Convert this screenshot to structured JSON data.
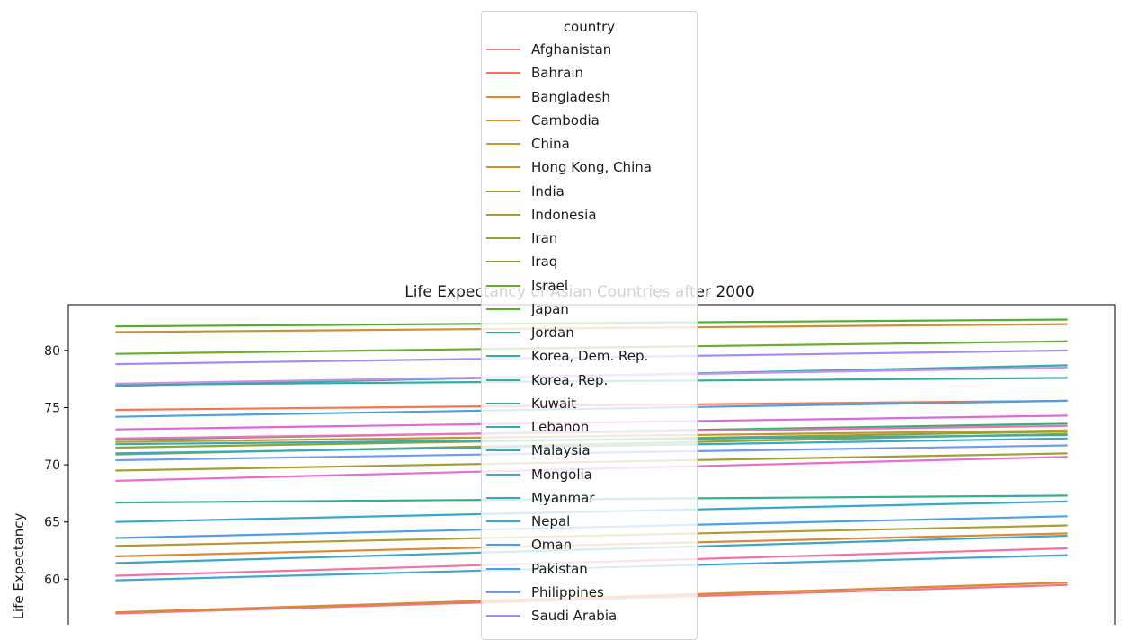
{
  "chart_data": {
    "type": "line",
    "title": "Life Expectancy of Asian Countries after 2000",
    "ylabel": "Life Expectancy",
    "xlabel": "",
    "ylim": [
      55.7,
      84.0
    ],
    "yticks": [
      60,
      65,
      70,
      75,
      80
    ],
    "x": [
      0,
      1
    ],
    "grid": false,
    "legend": {
      "title": "country",
      "placement": "upper center",
      "entries": [
        "Afghanistan",
        "Bahrain",
        "Bangladesh",
        "Cambodia",
        "China",
        "Hong Kong, China",
        "India",
        "Indonesia",
        "Iran",
        "Iraq",
        "Israel",
        "Japan",
        "Jordan",
        "Korea, Dem. Rep.",
        "Korea, Rep.",
        "Kuwait",
        "Lebanon",
        "Malaysia",
        "Mongolia",
        "Myanmar",
        "Nepal",
        "Oman",
        "Pakistan",
        "Philippines",
        "Saudi Arabia"
      ]
    },
    "series": [
      {
        "name": "Afghanistan",
        "color": "#f77189",
        "values": [
          57.0,
          59.5
        ]
      },
      {
        "name": "Bahrain",
        "color": "#f7754f",
        "values": [
          74.8,
          75.6
        ]
      },
      {
        "name": "Bangladesh",
        "color": "#dc8932",
        "values": [
          62.0,
          64.0
        ]
      },
      {
        "name": "Cambodia",
        "color": "#d48c32",
        "values": [
          57.1,
          59.7
        ]
      },
      {
        "name": "China",
        "color": "#c39532",
        "values": [
          72.0,
          73.0
        ]
      },
      {
        "name": "Hong Kong, China",
        "color": "#ce9032",
        "values": [
          81.6,
          82.3
        ]
      },
      {
        "name": "India",
        "color": "#b29a32",
        "values": [
          62.9,
          64.7
        ]
      },
      {
        "name": "Indonesia",
        "color": "#a39f32",
        "values": [
          69.5,
          71.0
        ]
      },
      {
        "name": "Iran",
        "color": "#9aa132",
        "values": [
          70.9,
          72.7
        ]
      },
      {
        "name": "Iraq",
        "color": "#8ea532",
        "values": [
          71.5,
          72.9
        ]
      },
      {
        "name": "Israel",
        "color": "#6aad32",
        "values": [
          79.7,
          80.8
        ]
      },
      {
        "name": "Japan",
        "color": "#4fb031",
        "values": [
          82.1,
          82.7
        ]
      },
      {
        "name": "Jordan",
        "color": "#33b07a",
        "values": [
          72.2,
          73.6
        ]
      },
      {
        "name": "Korea, Dem. Rep.",
        "color": "#35ae93",
        "values": [
          66.7,
          67.3
        ]
      },
      {
        "name": "Korea, Rep.",
        "color": "#36ada4",
        "values": [
          76.9,
          78.7
        ]
      },
      {
        "name": "Kuwait",
        "color": "#36ab9c",
        "values": [
          77.0,
          77.6
        ]
      },
      {
        "name": "Lebanon",
        "color": "#37abb4",
        "values": [
          71.8,
          72.6
        ]
      },
      {
        "name": "Malaysia",
        "color": "#38a9c5",
        "values": [
          71.0,
          72.3
        ]
      },
      {
        "name": "Mongolia",
        "color": "#39a7d0",
        "values": [
          65.0,
          66.8
        ]
      },
      {
        "name": "Myanmar",
        "color": "#3aa6c9",
        "values": [
          61.4,
          63.8
        ]
      },
      {
        "name": "Nepal",
        "color": "#41a5d5",
        "values": [
          59.9,
          62.1
        ]
      },
      {
        "name": "Oman",
        "color": "#4aa1df",
        "values": [
          74.2,
          75.6
        ]
      },
      {
        "name": "Pakistan",
        "color": "#51a0e6",
        "values": [
          63.6,
          65.5
        ]
      },
      {
        "name": "Philippines",
        "color": "#6e9bf4",
        "values": [
          70.4,
          71.7
        ]
      },
      {
        "name": "Saudi Arabia",
        "color": "#a48cf4",
        "values": [
          78.8,
          80.0
        ]
      },
      {
        "name": "",
        "color": "#dd69df",
        "values": [
          73.1,
          74.3
        ]
      },
      {
        "name": "",
        "color": "#e46dd7",
        "values": [
          68.6,
          70.7
        ]
      },
      {
        "name": "",
        "color": "#f06fb6",
        "values": [
          72.3,
          73.4
        ]
      },
      {
        "name": "",
        "color": "#f272a5",
        "values": [
          60.3,
          62.7
        ]
      },
      {
        "name": "",
        "color": "#c78ef4",
        "values": [
          77.1,
          78.5
        ]
      }
    ]
  }
}
